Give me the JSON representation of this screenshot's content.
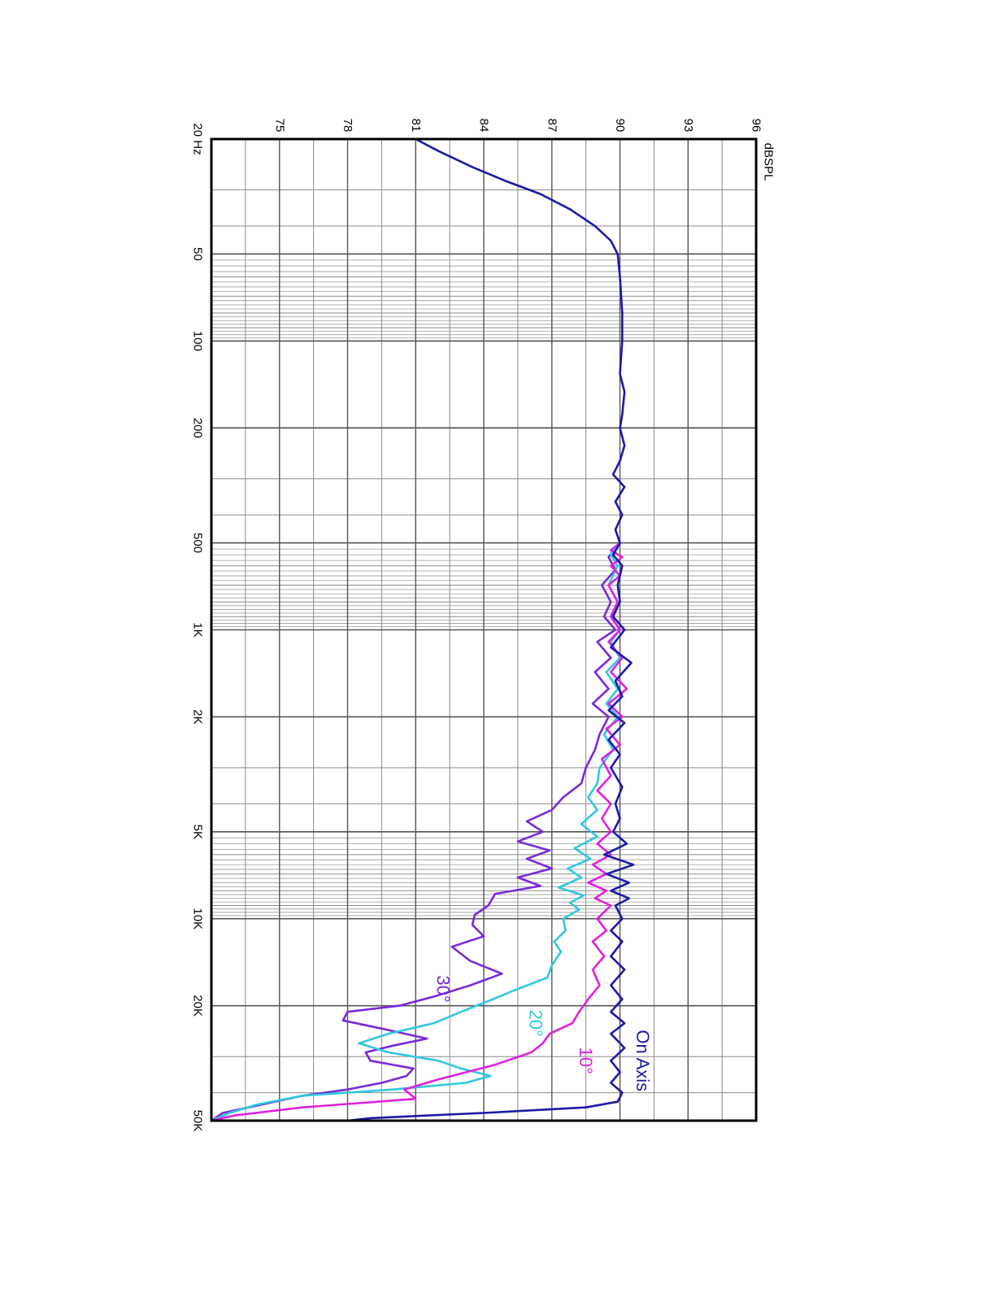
{
  "chart_data": {
    "type": "line",
    "x_scale": "log",
    "xlim": [
      20,
      50000
    ],
    "ylim": [
      72,
      96
    ],
    "y_unit": "dBSPL",
    "x_ticks": [
      {
        "value": 20,
        "label": "20 Hz"
      },
      {
        "value": 50,
        "label": "50"
      },
      {
        "value": 100,
        "label": "100"
      },
      {
        "value": 200,
        "label": "200"
      },
      {
        "value": 500,
        "label": "500"
      },
      {
        "value": 1000,
        "label": "1K"
      },
      {
        "value": 2000,
        "label": "2K"
      },
      {
        "value": 5000,
        "label": "5K"
      },
      {
        "value": 10000,
        "label": "10K"
      },
      {
        "value": 20000,
        "label": "20K"
      },
      {
        "value": 50000,
        "label": "50K"
      }
    ],
    "y_ticks": [
      {
        "value": 75,
        "label": "75"
      },
      {
        "value": 78,
        "label": "78"
      },
      {
        "value": 81,
        "label": "81"
      },
      {
        "value": 84,
        "label": "84"
      },
      {
        "value": 87,
        "label": "87"
      },
      {
        "value": 90,
        "label": "90"
      },
      {
        "value": 93,
        "label": "93"
      },
      {
        "value": 96,
        "label": "96"
      }
    ],
    "grid": true,
    "rotation": "chart rotated 90 degrees clockwise on the page",
    "series": [
      {
        "name": "On Axis",
        "color": "#1a1aa6",
        "points": [
          [
            20,
            81.0
          ],
          [
            22,
            82.0
          ],
          [
            25,
            83.5
          ],
          [
            28,
            85.0
          ],
          [
            31,
            86.5
          ],
          [
            35,
            87.8
          ],
          [
            40,
            88.9
          ],
          [
            45,
            89.6
          ],
          [
            50,
            89.9
          ],
          [
            60,
            90.0
          ],
          [
            80,
            90.1
          ],
          [
            100,
            90.1
          ],
          [
            130,
            90.0
          ],
          [
            150,
            90.2
          ],
          [
            180,
            90.1
          ],
          [
            200,
            90.0
          ],
          [
            230,
            90.2
          ],
          [
            260,
            90.0
          ],
          [
            290,
            89.7
          ],
          [
            320,
            90.2
          ],
          [
            360,
            89.8
          ],
          [
            400,
            90.1
          ],
          [
            450,
            89.8
          ],
          [
            500,
            90.0
          ],
          [
            550,
            89.7
          ],
          [
            600,
            90.1
          ],
          [
            700,
            89.9
          ],
          [
            800,
            90.0
          ],
          [
            900,
            89.7
          ],
          [
            1000,
            90.2
          ],
          [
            1150,
            89.6
          ],
          [
            1300,
            90.5
          ],
          [
            1500,
            89.8
          ],
          [
            1700,
            90.1
          ],
          [
            1900,
            89.5
          ],
          [
            2100,
            90.2
          ],
          [
            2400,
            89.5
          ],
          [
            2700,
            90.0
          ],
          [
            3000,
            89.6
          ],
          [
            3500,
            90.1
          ],
          [
            4000,
            89.8
          ],
          [
            4500,
            90.0
          ],
          [
            5000,
            89.7
          ],
          [
            5500,
            90.3
          ],
          [
            6000,
            89.3
          ],
          [
            6500,
            90.6
          ],
          [
            7000,
            89.4
          ],
          [
            7500,
            90.4
          ],
          [
            8000,
            89.6
          ],
          [
            8500,
            90.4
          ],
          [
            9000,
            89.8
          ],
          [
            10000,
            90.1
          ],
          [
            11000,
            89.6
          ],
          [
            12000,
            90.1
          ],
          [
            13500,
            89.6
          ],
          [
            15000,
            90.2
          ],
          [
            17000,
            89.6
          ],
          [
            19000,
            90.1
          ],
          [
            21000,
            89.6
          ],
          [
            23000,
            90.2
          ],
          [
            25000,
            89.6
          ],
          [
            28000,
            90.2
          ],
          [
            31000,
            89.6
          ],
          [
            34000,
            90.0
          ],
          [
            37000,
            89.6
          ],
          [
            40000,
            90.1
          ],
          [
            43000,
            89.9
          ],
          [
            45000,
            88.5
          ],
          [
            47000,
            84.0
          ],
          [
            49000,
            79.0
          ],
          [
            50000,
            78.0
          ]
        ]
      },
      {
        "name": "10°",
        "color": "#e020e0",
        "points": [
          [
            500,
            90.0
          ],
          [
            530,
            89.6
          ],
          [
            560,
            90.1
          ],
          [
            600,
            89.6
          ],
          [
            650,
            90.0
          ],
          [
            700,
            89.5
          ],
          [
            800,
            89.9
          ],
          [
            900,
            89.6
          ],
          [
            1000,
            90.0
          ],
          [
            1100,
            89.5
          ],
          [
            1250,
            90.1
          ],
          [
            1400,
            89.6
          ],
          [
            1600,
            90.3
          ],
          [
            1800,
            89.5
          ],
          [
            2000,
            90.1
          ],
          [
            2200,
            89.4
          ],
          [
            2500,
            90.0
          ],
          [
            2800,
            89.2
          ],
          [
            3200,
            89.6
          ],
          [
            3600,
            89.0
          ],
          [
            4000,
            89.6
          ],
          [
            4500,
            89.2
          ],
          [
            5000,
            89.6
          ],
          [
            5500,
            89.0
          ],
          [
            6000,
            89.6
          ],
          [
            6500,
            88.8
          ],
          [
            7000,
            89.4
          ],
          [
            7500,
            88.6
          ],
          [
            8000,
            89.4
          ],
          [
            8500,
            88.9
          ],
          [
            9000,
            89.6
          ],
          [
            10000,
            89.0
          ],
          [
            11000,
            89.4
          ],
          [
            12000,
            88.8
          ],
          [
            13500,
            89.3
          ],
          [
            15000,
            88.8
          ],
          [
            17000,
            89.1
          ],
          [
            19000,
            88.6
          ],
          [
            21000,
            88.2
          ],
          [
            23000,
            87.9
          ],
          [
            25000,
            86.9
          ],
          [
            27000,
            86.6
          ],
          [
            29000,
            86.1
          ],
          [
            32000,
            84.5
          ],
          [
            36000,
            82.0
          ],
          [
            39000,
            80.5
          ],
          [
            42000,
            81.0
          ],
          [
            45000,
            76.0
          ],
          [
            48000,
            73.0
          ],
          [
            50000,
            72.0
          ]
        ]
      },
      {
        "name": "20°",
        "color": "#30c8e0",
        "points": [
          [
            500,
            90.0
          ],
          [
            550,
            89.6
          ],
          [
            600,
            89.9
          ],
          [
            700,
            89.5
          ],
          [
            800,
            89.9
          ],
          [
            900,
            89.6
          ],
          [
            1000,
            90.0
          ],
          [
            1100,
            89.6
          ],
          [
            1250,
            90.0
          ],
          [
            1400,
            89.4
          ],
          [
            1600,
            89.9
          ],
          [
            1800,
            89.4
          ],
          [
            2000,
            89.9
          ],
          [
            2300,
            89.3
          ],
          [
            2600,
            89.7
          ],
          [
            3000,
            89.1
          ],
          [
            3400,
            89.0
          ],
          [
            3800,
            88.6
          ],
          [
            4200,
            89.0
          ],
          [
            4700,
            88.3
          ],
          [
            5200,
            89.0
          ],
          [
            5700,
            88.0
          ],
          [
            6200,
            88.7
          ],
          [
            6700,
            87.7
          ],
          [
            7200,
            88.3
          ],
          [
            7800,
            87.3
          ],
          [
            8300,
            88.4
          ],
          [
            8800,
            87.8
          ],
          [
            9300,
            88.2
          ],
          [
            10000,
            87.5
          ],
          [
            11000,
            87.6
          ],
          [
            12000,
            87.1
          ],
          [
            13000,
            87.4
          ],
          [
            14500,
            87.0
          ],
          [
            16000,
            86.8
          ],
          [
            17500,
            85.5
          ],
          [
            19000,
            84.4
          ],
          [
            21000,
            83.0
          ],
          [
            23000,
            81.8
          ],
          [
            25000,
            79.8
          ],
          [
            27000,
            78.5
          ],
          [
            29000,
            79.8
          ],
          [
            31000,
            82.0
          ],
          [
            33000,
            83.0
          ],
          [
            35000,
            84.3
          ],
          [
            37000,
            83.2
          ],
          [
            39000,
            80.0
          ],
          [
            41000,
            76.0
          ],
          [
            44000,
            74.0
          ],
          [
            47000,
            72.8
          ],
          [
            50000,
            72.0
          ]
        ]
      },
      {
        "name": "30°",
        "color": "#7a2ad8",
        "points": [
          [
            500,
            90.0
          ],
          [
            560,
            89.5
          ],
          [
            620,
            89.8
          ],
          [
            700,
            89.2
          ],
          [
            800,
            89.6
          ],
          [
            900,
            89.3
          ],
          [
            1000,
            89.8
          ],
          [
            1100,
            89.0
          ],
          [
            1250,
            89.6
          ],
          [
            1400,
            88.9
          ],
          [
            1600,
            89.5
          ],
          [
            1800,
            88.8
          ],
          [
            2000,
            89.5
          ],
          [
            2300,
            89.1
          ],
          [
            2600,
            88.9
          ],
          [
            3000,
            88.5
          ],
          [
            3400,
            88.3
          ],
          [
            3800,
            87.5
          ],
          [
            4200,
            87.0
          ],
          [
            4600,
            85.9
          ],
          [
            5000,
            86.6
          ],
          [
            5400,
            85.5
          ],
          [
            5800,
            86.9
          ],
          [
            6200,
            85.9
          ],
          [
            6700,
            87.0
          ],
          [
            7200,
            85.5
          ],
          [
            7700,
            86.5
          ],
          [
            8200,
            84.5
          ],
          [
            9000,
            84.2
          ],
          [
            9700,
            83.6
          ],
          [
            10500,
            83.5
          ],
          [
            11500,
            84.0
          ],
          [
            12500,
            82.6
          ],
          [
            14000,
            83.4
          ],
          [
            15500,
            84.8
          ],
          [
            17000,
            83.4
          ],
          [
            18500,
            81.9
          ],
          [
            20000,
            80.3
          ],
          [
            21000,
            78.0
          ],
          [
            22500,
            77.8
          ],
          [
            24000,
            79.5
          ],
          [
            26000,
            81.5
          ],
          [
            27500,
            80.0
          ],
          [
            29000,
            78.8
          ],
          [
            31000,
            79.0
          ],
          [
            33000,
            80.9
          ],
          [
            35000,
            80.6
          ],
          [
            37000,
            79.5
          ],
          [
            39000,
            78.0
          ],
          [
            41000,
            76.0
          ],
          [
            44000,
            74.2
          ],
          [
            47000,
            72.5
          ],
          [
            50000,
            72.0
          ]
        ]
      }
    ],
    "annotations": [
      {
        "text": "On Axis",
        "x": 31000,
        "y": 91.0,
        "color": "#1a1aa6"
      },
      {
        "text": "10°",
        "x": 31000,
        "y": 88.5,
        "color": "#e020e0"
      },
      {
        "text": "20°",
        "x": 23000,
        "y": 86.3,
        "color": "#30c8e0"
      },
      {
        "text": "30°",
        "x": 17500,
        "y": 82.2,
        "color": "#7a2ad8"
      }
    ]
  }
}
